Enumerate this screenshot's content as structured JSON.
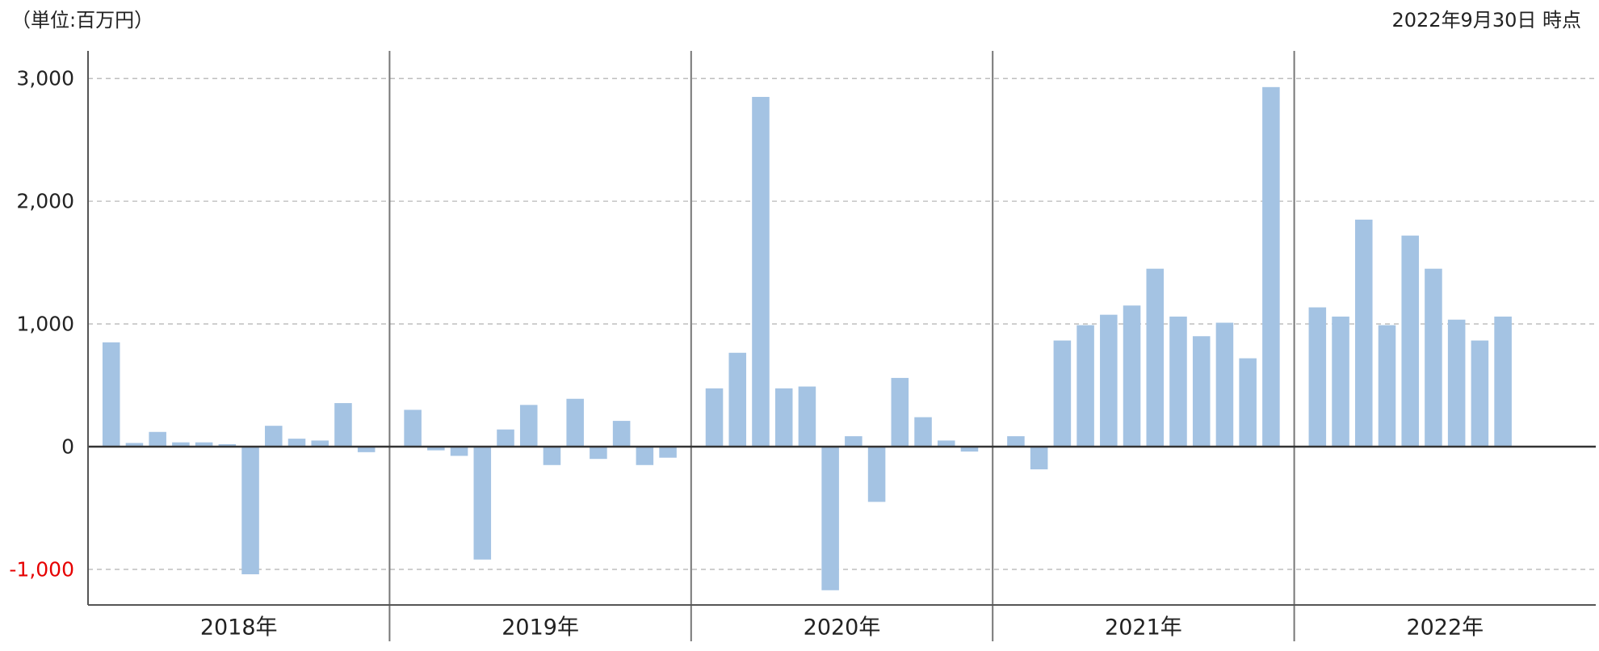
{
  "chart_data": {
    "type": "bar",
    "unit_note": "（単位:百万円）",
    "as_of_note": "2022年9月30日 時点",
    "yticks": [
      3000,
      2000,
      1000,
      0,
      -1000
    ],
    "ytick_labels": [
      "3,000",
      "2,000",
      "1,000",
      "0",
      "-1,000"
    ],
    "ylim": [
      -1290,
      3225
    ],
    "grid": true,
    "legend": "none",
    "groups": [
      {
        "label": "2018年",
        "values": [
          850,
          30,
          120,
          35,
          35,
          20,
          -1040,
          170,
          65,
          50,
          355,
          -45
        ]
      },
      {
        "label": "2019年",
        "values": [
          300,
          -30,
          -75,
          -920,
          140,
          340,
          -150,
          390,
          -100,
          210,
          -150,
          -90
        ]
      },
      {
        "label": "2020年",
        "values": [
          475,
          765,
          2850,
          475,
          490,
          -1170,
          85,
          -450,
          560,
          240,
          50,
          -40
        ]
      },
      {
        "label": "2021年",
        "values": [
          85,
          -185,
          865,
          990,
          1075,
          1150,
          1450,
          1060,
          900,
          1010,
          720,
          2930
        ]
      },
      {
        "label": "2022年",
        "values": [
          1135,
          1060,
          1850,
          990,
          1720,
          1450,
          1035,
          865,
          1060
        ]
      }
    ],
    "colors": {
      "bar": "#a4c3e3",
      "grid": "#b8b8b8",
      "zero_line": "#333333",
      "separator": "#777777",
      "axis": "#555555",
      "label": "#222222",
      "negative_label": "#e60000"
    }
  }
}
